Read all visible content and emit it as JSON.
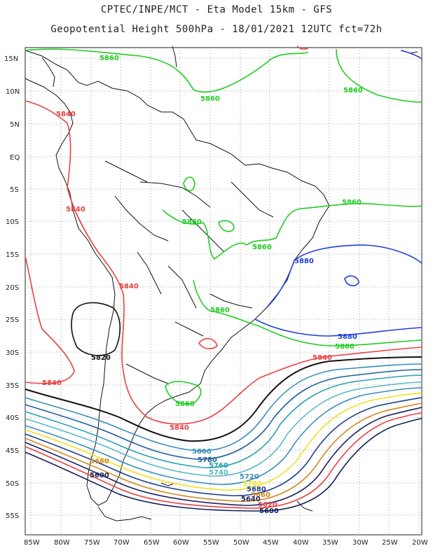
{
  "title_line1": "CPTEC/INPE/MCT  -  Eta Model 15km  -  GFS",
  "title_line2": "Geopotential Height 500hPa  -  18/01/2021  12UTC  fct=72h",
  "lat_labels": [
    "15N",
    "10N",
    "5N",
    "EQ",
    "5S",
    "10S",
    "15S",
    "20S",
    "25S",
    "30S",
    "35S",
    "40S",
    "45S",
    "50S",
    "55S"
  ],
  "lon_labels": [
    "85W",
    "80W",
    "75W",
    "70W",
    "65W",
    "60W",
    "55W",
    "50W",
    "45W",
    "40W",
    "35W",
    "30W",
    "25W",
    "20W"
  ],
  "contour_labels": [
    {
      "text": "5860",
      "color": "#22cc22",
      "id": "a"
    },
    {
      "text": "5860",
      "color": "#22cc22",
      "id": "b"
    },
    {
      "text": "5860",
      "color": "#22cc22",
      "id": "c"
    },
    {
      "text": "5840",
      "color": "#e84040",
      "id": "d"
    },
    {
      "text": "5840",
      "color": "#e84040",
      "id": "e"
    },
    {
      "text": "5860",
      "color": "#22cc22",
      "id": "f"
    },
    {
      "text": "5860",
      "color": "#22cc22",
      "id": "g"
    },
    {
      "text": "5860",
      "color": "#22cc22",
      "id": "h"
    },
    {
      "text": "5880",
      "color": "#1f3fd6",
      "id": "i"
    },
    {
      "text": "5840",
      "color": "#e84040",
      "id": "j"
    },
    {
      "text": "5860",
      "color": "#22cc22",
      "id": "k"
    },
    {
      "text": "5880",
      "color": "#1f3fd6",
      "id": "l"
    },
    {
      "text": "5860",
      "color": "#22cc22",
      "id": "m"
    },
    {
      "text": "5840",
      "color": "#e84040",
      "id": "n"
    },
    {
      "text": "5820",
      "color": "#111111",
      "id": "o"
    },
    {
      "text": "5840",
      "color": "#e84040",
      "id": "p"
    },
    {
      "text": "5860",
      "color": "#22cc22",
      "id": "q"
    },
    {
      "text": "5840",
      "color": "#e84040",
      "id": "r"
    },
    {
      "text": "5800",
      "color": "#3a8fb8",
      "id": "s"
    },
    {
      "text": "5780",
      "color": "#1f5fa0",
      "id": "t"
    },
    {
      "text": "5760",
      "color": "#2aa0b0",
      "id": "u"
    },
    {
      "text": "5740",
      "color": "#5bb7c7",
      "id": "v"
    },
    {
      "text": "5720",
      "color": "#3a8fb8",
      "id": "w"
    },
    {
      "text": "5700",
      "color": "#f0e020",
      "id": "x"
    },
    {
      "text": "5680",
      "color": "#1f3f8f",
      "id": "y"
    },
    {
      "text": "5660",
      "color": "#d08a20",
      "id": "z"
    },
    {
      "text": "5640",
      "color": "#1f1f60",
      "id": "aa"
    },
    {
      "text": "5620",
      "color": "#e84040",
      "id": "bb"
    },
    {
      "text": "5600",
      "color": "#10205a",
      "id": "cc"
    },
    {
      "text": "5660",
      "color": "#d08a20",
      "id": "dd"
    },
    {
      "text": "5600",
      "color": "#10205a",
      "id": "ee"
    }
  ],
  "colors": {
    "c5860": "#22cc22",
    "c5840": "#e84040",
    "c5880": "#1f3fd6",
    "c5820": "#111111",
    "c5800": "#3a8fb8",
    "c5780": "#1f5fa0",
    "c5760": "#2aa0b0",
    "c5740": "#5bb7c7",
    "c5720": "#3a8fb8",
    "c5700": "#f0e020",
    "c5680": "#1f3f8f",
    "c5660": "#d08a20",
    "c5640": "#1f1f60",
    "c5620": "#e84040",
    "c5600": "#10205a",
    "coast": "#111111",
    "grid": "#888888"
  }
}
